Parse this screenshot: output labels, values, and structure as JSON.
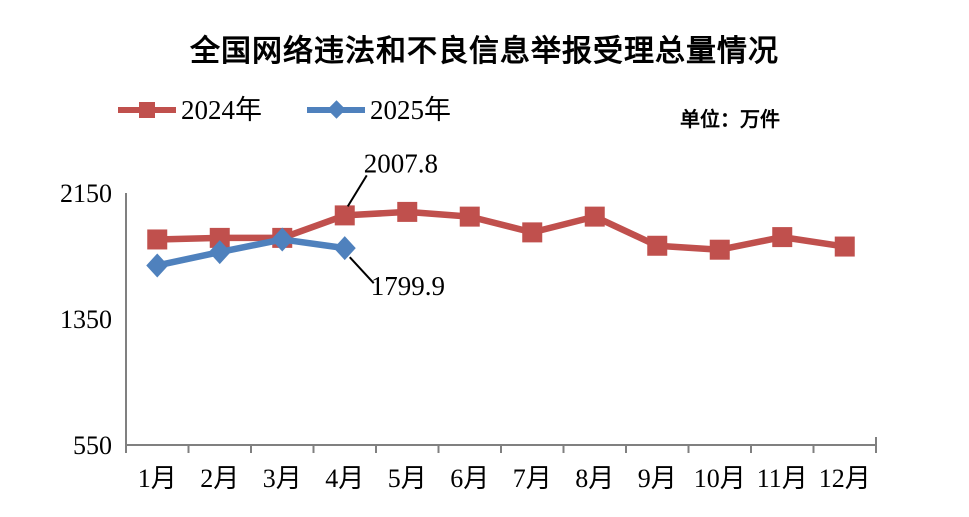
{
  "title": "全国网络违法和不良信息举报受理总量情况",
  "unit_label": "单位：万件",
  "legend": [
    {
      "label": "2024年",
      "color": "#C0504D",
      "marker": "square"
    },
    {
      "label": "2025年",
      "color": "#4F81BD",
      "marker": "diamond"
    }
  ],
  "colors": {
    "series_2024": "#C0504D",
    "series_2025": "#4F81BD",
    "axis": "#808080",
    "text": "#000000"
  },
  "chart_data": {
    "type": "line",
    "title": "全国网络违法和不良信息举报受理总量情况",
    "unit": "万件",
    "categories": [
      "1月",
      "2月",
      "3月",
      "4月",
      "5月",
      "6月",
      "7月",
      "8月",
      "9月",
      "10月",
      "11月",
      "12月"
    ],
    "series": [
      {
        "name": "2024年",
        "color": "#C0504D",
        "marker": "square",
        "values": [
          1855,
          1865,
          1865,
          2007.8,
          2030,
          2000,
          1900,
          2000,
          1815,
          1790,
          1870,
          1810
        ]
      },
      {
        "name": "2025年",
        "color": "#4F81BD",
        "marker": "diamond",
        "values": [
          1690,
          1775,
          1855,
          1799.9
        ]
      }
    ],
    "annotations": [
      {
        "text": "2007.8",
        "series": "2024年",
        "category": "4月"
      },
      {
        "text": "1799.9",
        "series": "2025年",
        "category": "4月"
      }
    ],
    "xlabel": "",
    "ylabel": "",
    "yticks": [
      550,
      1350,
      2150
    ],
    "ylim": [
      550,
      2150
    ],
    "grid": false,
    "legend_position": "top-left"
  }
}
